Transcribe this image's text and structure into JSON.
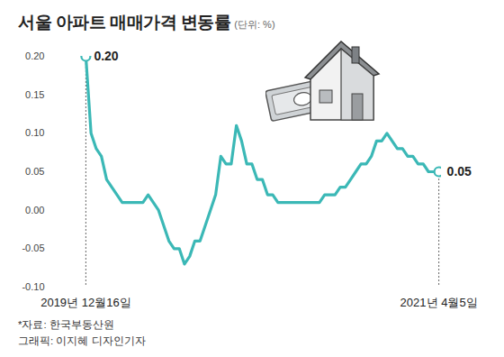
{
  "chart_data": {
    "type": "line",
    "title": "서울 아파트 매매가격 변동률",
    "subtitle": "(단위: %)",
    "notes": [
      "*자료: 한국부동산원",
      "그래픽: 이지혜 디자인기자"
    ],
    "categories": [
      "2019년 12월16일",
      null,
      null,
      null,
      null,
      null,
      null,
      null,
      null,
      null,
      null,
      null,
      null,
      null,
      null,
      null,
      null,
      null,
      null,
      null,
      null,
      null,
      null,
      null,
      null,
      null,
      null,
      null,
      null,
      null,
      null,
      null,
      null,
      null,
      null,
      null,
      null,
      null,
      null,
      null,
      null,
      null,
      null,
      null,
      null,
      null,
      null,
      null,
      null,
      null,
      null,
      null,
      null,
      null,
      null,
      null,
      null,
      null,
      null,
      null,
      null,
      null,
      null,
      null,
      null,
      null,
      null,
      null,
      "2021년 4월5일"
    ],
    "values": [
      0.2,
      0.1,
      0.08,
      0.07,
      0.04,
      0.03,
      0.02,
      0.01,
      0.01,
      0.01,
      0.01,
      0.01,
      0.02,
      0.01,
      0.0,
      -0.02,
      -0.04,
      -0.05,
      -0.05,
      -0.07,
      -0.06,
      -0.04,
      -0.04,
      -0.02,
      0.0,
      0.02,
      0.07,
      0.06,
      0.06,
      0.11,
      0.09,
      0.06,
      0.06,
      0.04,
      0.04,
      0.02,
      0.02,
      0.01,
      0.01,
      0.01,
      0.01,
      0.01,
      0.01,
      0.01,
      0.01,
      0.01,
      0.02,
      0.02,
      0.02,
      0.03,
      0.03,
      0.04,
      0.05,
      0.06,
      0.06,
      0.07,
      0.09,
      0.09,
      0.1,
      0.09,
      0.08,
      0.08,
      0.07,
      0.07,
      0.06,
      0.06,
      0.05,
      0.05,
      0.05
    ],
    "value_labels": [
      "0.20",
      null,
      null,
      null,
      null,
      null,
      null,
      null,
      null,
      null,
      null,
      null,
      null,
      null,
      null,
      null,
      null,
      null,
      null,
      null,
      null,
      null,
      null,
      null,
      null,
      null,
      null,
      null,
      null,
      null,
      null,
      null,
      null,
      null,
      null,
      null,
      null,
      null,
      null,
      null,
      null,
      null,
      null,
      null,
      null,
      null,
      null,
      null,
      null,
      null,
      null,
      null,
      null,
      null,
      null,
      null,
      null,
      null,
      null,
      null,
      null,
      null,
      null,
      null,
      null,
      null,
      null,
      null,
      "0.05"
    ],
    "color": "#3bb8b6",
    "ylim": [
      -0.1,
      0.2
    ],
    "yticks": [
      {
        "value": -0.1,
        "label": "-0.10"
      },
      -0.05,
      {
        "value": 0,
        "label": "0.00"
      },
      0.05,
      {
        "value": 0.1,
        "label": "0.10"
      },
      0.15,
      {
        "value": 0.2,
        "label": "0.20"
      }
    ],
    "grid": false
  }
}
